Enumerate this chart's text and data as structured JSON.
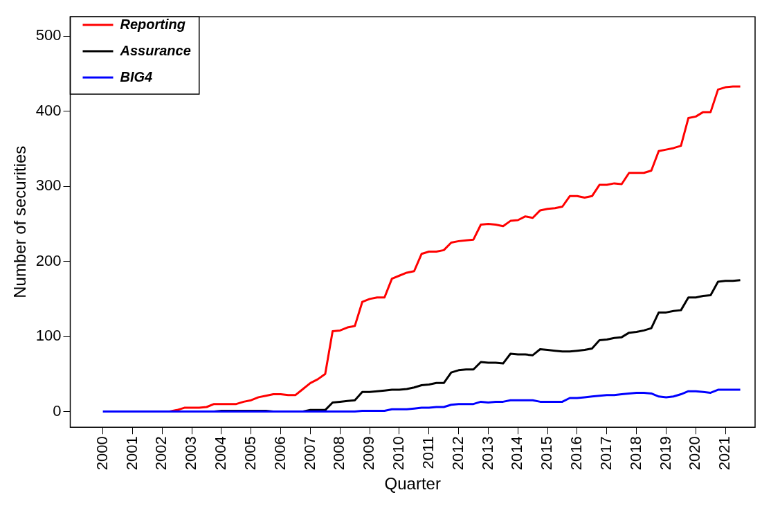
{
  "chart_data": {
    "type": "line",
    "xlabel": "Quarter",
    "ylabel": "Number of securities",
    "x": [
      2000,
      2000.25,
      2000.5,
      2000.75,
      2001,
      2001.25,
      2001.5,
      2001.75,
      2002,
      2002.25,
      2002.5,
      2002.75,
      2003,
      2003.25,
      2003.5,
      2003.75,
      2004,
      2004.25,
      2004.5,
      2004.75,
      2005,
      2005.25,
      2005.5,
      2005.75,
      2006,
      2006.25,
      2006.5,
      2006.75,
      2007,
      2007.25,
      2007.5,
      2007.75,
      2008,
      2008.25,
      2008.5,
      2008.75,
      2009,
      2009.25,
      2009.5,
      2009.75,
      2010,
      2010.25,
      2010.5,
      2010.75,
      2011,
      2011.25,
      2011.5,
      2011.75,
      2012,
      2012.25,
      2012.5,
      2012.75,
      2013,
      2013.25,
      2013.5,
      2013.75,
      2014,
      2014.25,
      2014.5,
      2014.75,
      2015,
      2015.25,
      2015.5,
      2015.75,
      2016,
      2016.25,
      2016.5,
      2016.75,
      2017,
      2017.25,
      2017.5,
      2017.75,
      2018,
      2018.25,
      2018.5,
      2018.75,
      2019,
      2019.25,
      2019.5,
      2019.75,
      2020,
      2020.25,
      2020.5,
      2020.75,
      2021,
      2021.25,
      2021.5
    ],
    "series": [
      {
        "name": "Reporting",
        "color": "#ff0000",
        "values": [
          null,
          null,
          null,
          null,
          null,
          null,
          null,
          null,
          0,
          0,
          2,
          5,
          5,
          5,
          6,
          10,
          10,
          10,
          10,
          13,
          15,
          19,
          21,
          23,
          23,
          22,
          22,
          30,
          38,
          43,
          50,
          107,
          108,
          112,
          114,
          146,
          150,
          152,
          152,
          177,
          181,
          185,
          187,
          210,
          213,
          213,
          215,
          225,
          227,
          228,
          229,
          249,
          250,
          249,
          247,
          254,
          255,
          260,
          258,
          268,
          270,
          271,
          273,
          287,
          287,
          285,
          287,
          302,
          302,
          304,
          303,
          318,
          318,
          318,
          321,
          347,
          349,
          351,
          354,
          391,
          393,
          399,
          399,
          429,
          432,
          433,
          433
        ]
      },
      {
        "name": "Assurance",
        "color": "#000000",
        "values": [
          null,
          null,
          null,
          null,
          null,
          null,
          null,
          null,
          null,
          null,
          null,
          null,
          null,
          null,
          0,
          0,
          1,
          1,
          1,
          1,
          1,
          1,
          1,
          0,
          0,
          0,
          0,
          0,
          2,
          2,
          2,
          12,
          13,
          14,
          15,
          26,
          26,
          27,
          28,
          29,
          29,
          30,
          32,
          35,
          36,
          38,
          38,
          52,
          55,
          56,
          56,
          66,
          65,
          65,
          64,
          77,
          76,
          76,
          75,
          83,
          82,
          81,
          80,
          80,
          81,
          82,
          84,
          95,
          96,
          98,
          99,
          105,
          106,
          108,
          111,
          132,
          132,
          134,
          135,
          152,
          152,
          154,
          155,
          173,
          174,
          174,
          175
        ]
      },
      {
        "name": "BIG4",
        "color": "#0000ff",
        "values": [
          0,
          0,
          0,
          0,
          0,
          0,
          0,
          0,
          0,
          0,
          0,
          0,
          0,
          0,
          0,
          0,
          0,
          0,
          0,
          0,
          0,
          0,
          0,
          0,
          0,
          0,
          0,
          0,
          0,
          0,
          0,
          0,
          0,
          0,
          0,
          1,
          1,
          1,
          1,
          3,
          3,
          3,
          4,
          5,
          5,
          6,
          6,
          9,
          10,
          10,
          10,
          13,
          12,
          13,
          13,
          15,
          15,
          15,
          15,
          13,
          13,
          13,
          13,
          18,
          18,
          19,
          20,
          21,
          22,
          22,
          23,
          24,
          25,
          25,
          24,
          20,
          19,
          20,
          23,
          27,
          27,
          26,
          25,
          29,
          29,
          29,
          29
        ]
      }
    ],
    "xlim": [
      1998.9,
      2022
    ],
    "xticks": [
      2000,
      2001,
      2002,
      2003,
      2004,
      2005,
      2006,
      2007,
      2008,
      2009,
      2010,
      2011,
      2012,
      2013,
      2014,
      2015,
      2016,
      2017,
      2018,
      2019,
      2020,
      2021
    ],
    "ylim": [
      -21,
      526
    ],
    "yticks": [
      0,
      100,
      200,
      300,
      400,
      500
    ],
    "grid": false,
    "legend": "top left",
    "marker": "none",
    "line_style": "solid"
  }
}
